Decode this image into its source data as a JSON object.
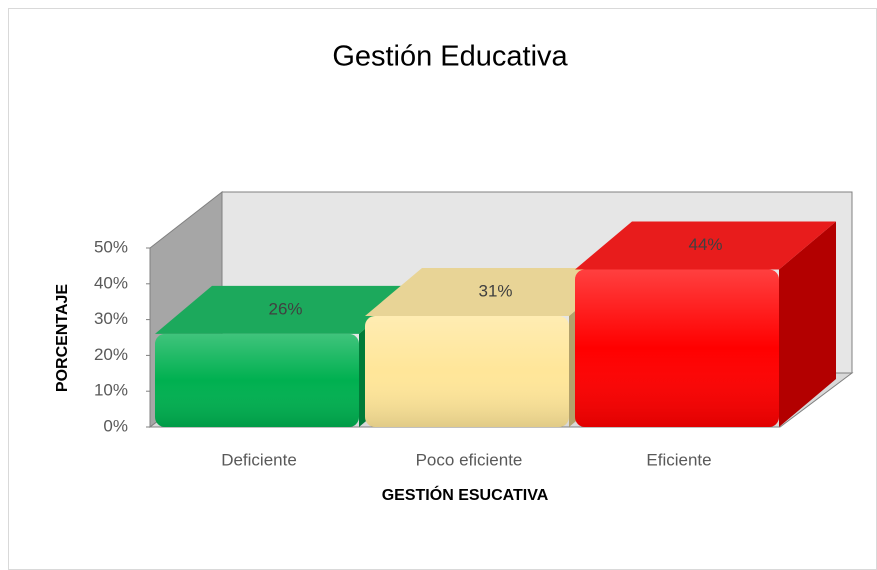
{
  "chart_data": {
    "type": "bar3d",
    "title": "Gestión Educativa",
    "x_label": "GESTIÓN ESUCATIVA",
    "y_label": "PORCENTAJE",
    "categories": [
      "Deficiente",
      "Poco eficiente",
      "Eficiente"
    ],
    "values": [
      26,
      31,
      44
    ],
    "value_labels": [
      "26%",
      "31%",
      "44%"
    ],
    "colors": [
      "#00b050",
      "#ffe699",
      "#ff0000"
    ],
    "ylim": [
      0,
      50
    ],
    "yticks": [
      {
        "value": 0,
        "label": "0%"
      },
      {
        "value": 10,
        "label": "10%"
      },
      {
        "value": 20,
        "label": "20%"
      },
      {
        "value": 30,
        "label": "30%"
      },
      {
        "value": 40,
        "label": "40%"
      },
      {
        "value": 50,
        "label": "50%"
      }
    ]
  }
}
